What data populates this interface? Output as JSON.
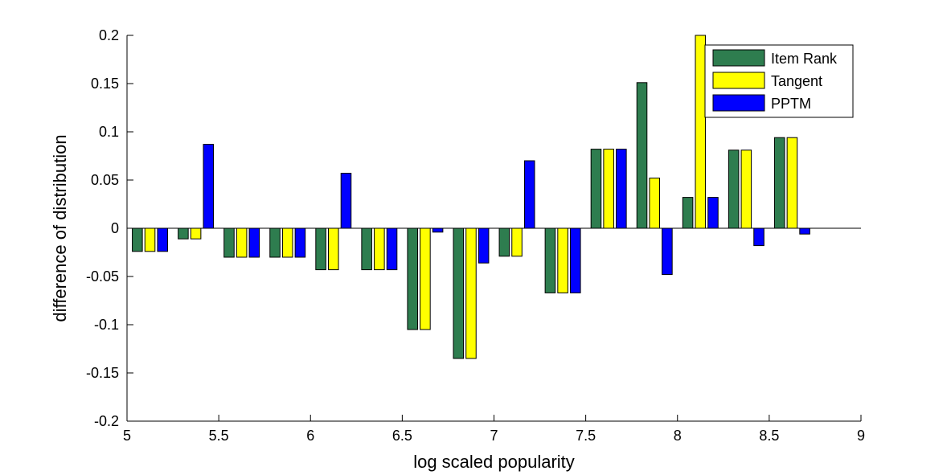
{
  "chart_data": {
    "type": "bar",
    "xlabel": "log scaled popularity",
    "ylabel": "difference of distribution",
    "xlim": [
      5,
      9
    ],
    "ylim": [
      -0.2,
      0.2
    ],
    "xticks": [
      "5",
      "5.5",
      "6",
      "6.5",
      "7",
      "7.5",
      "8",
      "8.5",
      "9"
    ],
    "yticks": [
      "-0.2",
      "-0.15",
      "-0.1",
      "-0.05",
      "0",
      "0.05",
      "0.1",
      "0.15",
      "0.2"
    ],
    "grid": false,
    "legend_position": "top-right",
    "x": [
      5.125,
      5.375,
      5.625,
      5.875,
      6.125,
      6.375,
      6.625,
      6.875,
      7.125,
      7.375,
      7.625,
      7.875,
      8.125,
      8.375,
      8.625
    ],
    "series": [
      {
        "name": "Item Rank",
        "color": "#2e7d4f",
        "values": [
          -0.024,
          -0.011,
          -0.03,
          -0.03,
          -0.043,
          -0.043,
          -0.105,
          -0.135,
          -0.029,
          -0.067,
          0.082,
          0.151,
          0.032,
          0.081,
          0.094
        ]
      },
      {
        "name": "Tangent",
        "color": "#ffff00",
        "values": [
          -0.024,
          -0.011,
          -0.03,
          -0.03,
          -0.043,
          -0.043,
          -0.105,
          -0.135,
          -0.029,
          -0.067,
          0.082,
          0.052,
          0.2,
          0.081,
          0.094
        ]
      },
      {
        "name": "PPTM",
        "color": "#0000ff",
        "values": [
          -0.024,
          0.087,
          -0.03,
          -0.03,
          0.057,
          -0.043,
          -0.004,
          -0.036,
          0.07,
          -0.067,
          0.082,
          -0.048,
          0.032,
          -0.018,
          -0.006
        ]
      }
    ]
  }
}
